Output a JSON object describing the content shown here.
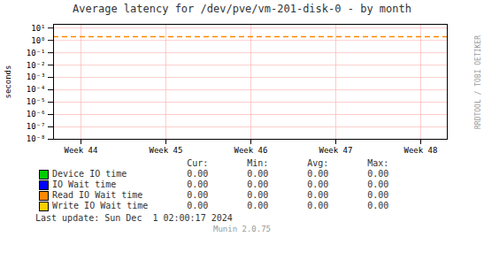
{
  "chart_data": {
    "type": "line",
    "title": "Average latency for /dev/pve/vm-201-disk-0 - by month",
    "ylabel": "seconds",
    "categories": [
      "Week 44",
      "Week 45",
      "Week 46",
      "Week 47",
      "Week 48"
    ],
    "log": "y",
    "ylim": [
      1e-08,
      19.952623149688797
    ],
    "yticks": [
      {
        "value": 1e-08,
        "label": "10⁻⁸"
      },
      {
        "value": 1e-07,
        "label": "10⁻⁷"
      },
      {
        "value": 1e-06,
        "label": "10⁻⁶"
      },
      {
        "value": 1e-05,
        "label": "10⁻⁵"
      },
      {
        "value": 0.0001,
        "label": "10⁻⁴"
      },
      {
        "value": 0.001,
        "label": "10⁻³"
      },
      {
        "value": 0.01,
        "label": "10⁻²"
      },
      {
        "value": 0.1,
        "label": "10⁻¹"
      },
      {
        "value": 1,
        "label": "10⁰"
      },
      {
        "value": 10,
        "label": "10¹"
      }
    ],
    "grid": true,
    "hlines": [
      {
        "value": 2.0,
        "color": "#ff8800",
        "line_style": "dashed"
      }
    ],
    "legend": "bottom",
    "stats_headers": [
      "Cur:",
      "Min:",
      "Avg:",
      "Max:"
    ],
    "series": [
      {
        "name": "Device IO time",
        "color": "#00cc00",
        "stats": [
          0.0,
          0.0,
          0.0,
          0.0
        ],
        "stats_labels": [
          "0.00",
          "0.00",
          "0.00",
          "0.00"
        ]
      },
      {
        "name": "IO Wait time",
        "color": "#0000ff",
        "stats": [
          0.0,
          0.0,
          0.0,
          0.0
        ],
        "stats_labels": [
          "0.00",
          "0.00",
          "0.00",
          "0.00"
        ]
      },
      {
        "name": "Read IO Wait time",
        "color": "#ff8800",
        "stats": [
          0.0,
          0.0,
          0.0,
          0.0
        ],
        "stats_labels": [
          "0.00",
          "0.00",
          "0.00",
          "0.00"
        ]
      },
      {
        "name": "Write IO Wait time",
        "color": "#ffcc00",
        "stats": [
          0.0,
          0.0,
          0.0,
          0.0
        ],
        "stats_labels": [
          "0.00",
          "0.00",
          "0.00",
          "0.00"
        ]
      }
    ],
    "footer": "Last update: Sun Dec  1 02:00:17 2024",
    "credit": "Munin 2.0.75",
    "watermark": "RRDTOOL / TOBI OETIKER"
  }
}
